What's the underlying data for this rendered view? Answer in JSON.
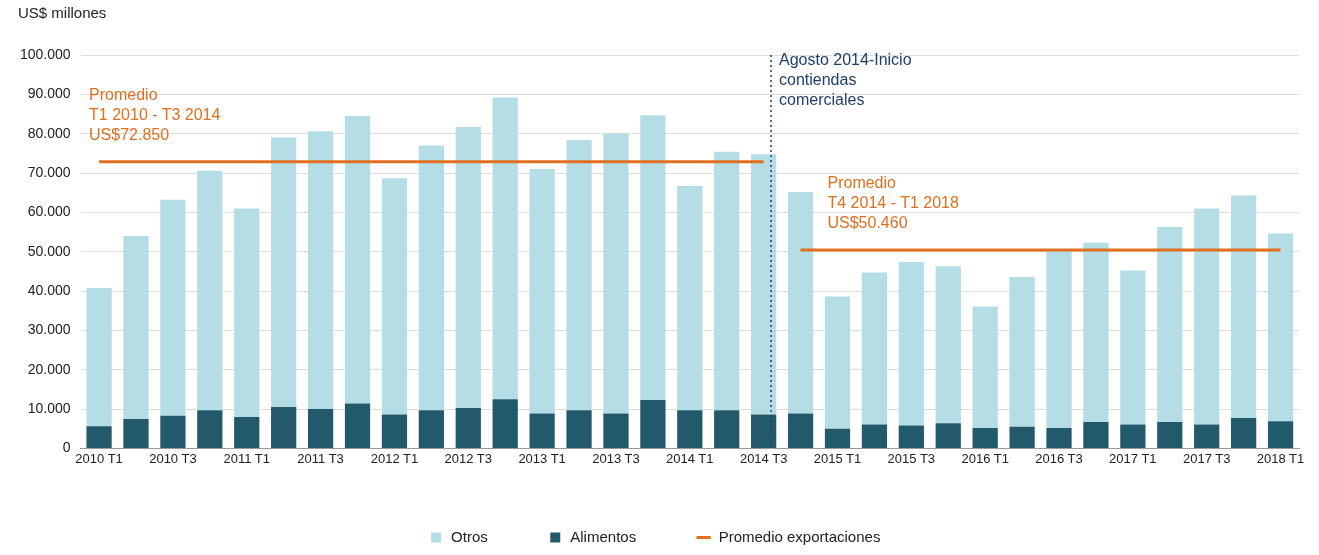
{
  "chart_data": {
    "type": "bar",
    "stacked": true,
    "ylabel": "US$ millones",
    "categories": [
      "2010 T1",
      null,
      "2010 T3",
      null,
      "2011 T1",
      null,
      "2011 T3",
      null,
      "2012 T1",
      null,
      "2012 T3",
      null,
      "2013 T1",
      null,
      "2013 T3",
      null,
      "2014 T1",
      null,
      "2014 T3",
      null,
      "2015 T1",
      null,
      "2015 T3",
      null,
      "2016 T1",
      null,
      "2016 T3",
      null,
      "2017 T1",
      null,
      "2017 T3",
      null,
      "2018 T1"
    ],
    "series": [
      {
        "name": "Alimentos",
        "color": "#225a6b",
        "values": [
          5600,
          7500,
          8300,
          9700,
          8000,
          10500,
          10000,
          11400,
          8600,
          9700,
          10300,
          12500,
          8900,
          9700,
          8900,
          12300,
          9700,
          9700,
          8600,
          8900,
          5000,
          6100,
          5800,
          6400,
          5200,
          5500,
          5200,
          6700,
          6100,
          6700,
          6100,
          7700,
          6900
        ]
      },
      {
        "name": "Otros",
        "color": "#b5dde6",
        "values": [
          35200,
          46500,
          54900,
          60900,
          53000,
          68500,
          70600,
          73100,
          60100,
          67300,
          71400,
          76700,
          62100,
          68700,
          71100,
          72400,
          57000,
          65700,
          66200,
          56300,
          33600,
          38600,
          41600,
          39900,
          30900,
          38100,
          45100,
          45600,
          39100,
          49600,
          54900,
          56600,
          47700
        ]
      },
      {
        "name": "Promedio exportaciones",
        "type": "line",
        "color": "#e07020",
        "values": [
          72850,
          72850,
          72850,
          72850,
          72850,
          72850,
          72850,
          72850,
          72850,
          72850,
          72850,
          72850,
          72850,
          72850,
          72850,
          72850,
          72850,
          72850,
          72850,
          null,
          null,
          null,
          null,
          null,
          null,
          null,
          null,
          null,
          null,
          null,
          null,
          null,
          null
        ]
      },
      {
        "type": "line",
        "color": "#e07020",
        "values": [
          null,
          null,
          null,
          null,
          null,
          null,
          null,
          null,
          null,
          null,
          null,
          null,
          null,
          null,
          null,
          null,
          null,
          null,
          null,
          50460,
          50460,
          50460,
          50460,
          50460,
          50460,
          50460,
          50460,
          50460,
          50460,
          50460,
          50460,
          50460,
          50460
        ]
      }
    ],
    "ylim": [
      0,
      100000
    ],
    "yticks": [
      {
        "value": 0,
        "label": "0"
      },
      {
        "value": 10000,
        "label": "10.000"
      },
      {
        "value": 20000,
        "label": "20.000"
      },
      {
        "value": 30000,
        "label": "30.000"
      },
      {
        "value": 40000,
        "label": "40.000"
      },
      {
        "value": 50000,
        "label": "50.000"
      },
      {
        "value": 60000,
        "label": "60.000"
      },
      {
        "value": 70000,
        "label": "70.000"
      },
      {
        "value": 80000,
        "label": "80.000"
      },
      {
        "value": 90000,
        "label": "90.000"
      },
      {
        "value": 100000,
        "label": "100.000"
      }
    ],
    "grid": "y",
    "legend": "bottom",
    "marker": "none",
    "line_style": "solid",
    "ref_lines": [
      {
        "axis": "x",
        "value": "2014 T3",
        "label": "Agosto 2014-Inicio contiendas comerciales",
        "line_style": "dotted",
        "color": "#1f3e6e"
      }
    ],
    "annotations": [
      {
        "text": "Promedio\nT1 2010 - T3 2014\nUS$72.850",
        "x": "2010 T1",
        "y": 72850
      },
      {
        "text": "Promedio\nT4 2014 - T1 2018\nUS$50.460",
        "x": "2015 T1",
        "y": 50460
      }
    ]
  }
}
